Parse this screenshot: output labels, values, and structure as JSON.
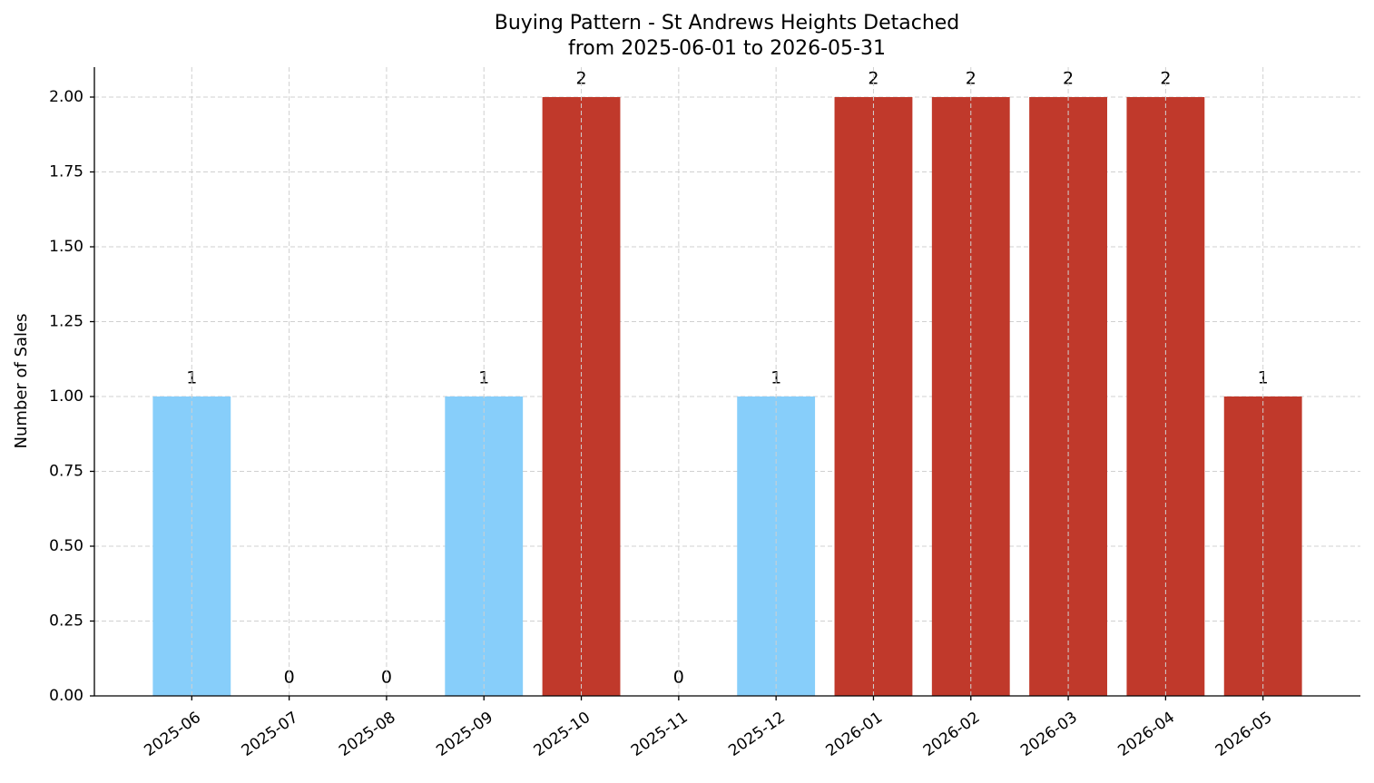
{
  "chart_data": {
    "type": "bar",
    "title": "Buying Pattern - St Andrews Heights Detached",
    "subtitle": "from 2025-06-01 to 2026-05-31",
    "y_label": "Number of Sales",
    "categories": [
      "2025-06",
      "2025-07",
      "2025-08",
      "2025-09",
      "2025-10",
      "2025-11",
      "2025-12",
      "2026-01",
      "2026-02",
      "2026-03",
      "2026-04",
      "2026-05"
    ],
    "values": [
      1,
      0,
      0,
      1,
      2,
      0,
      1,
      2,
      2,
      2,
      2,
      1
    ],
    "colors": [
      "#87cefa",
      "#87cefa",
      "#87cefa",
      "#87cefa",
      "#c0392b",
      "#87cefa",
      "#87cefa",
      "#c0392b",
      "#c0392b",
      "#c0392b",
      "#c0392b",
      "#c0392b"
    ],
    "ylim": [
      0,
      2.1
    ],
    "yticks": [
      {
        "value": 0,
        "label": "0.00"
      },
      {
        "value": 0.25,
        "label": "0.25"
      },
      {
        "value": 0.5,
        "label": "0.50"
      },
      {
        "value": 0.75,
        "label": "0.75"
      },
      {
        "value": 1,
        "label": "1.00"
      },
      {
        "value": 1.25,
        "label": "1.25"
      },
      {
        "value": 1.5,
        "label": "1.50"
      },
      {
        "value": 1.75,
        "label": "1.75"
      },
      {
        "value": 2,
        "label": "2.00"
      }
    ],
    "grid": true
  }
}
